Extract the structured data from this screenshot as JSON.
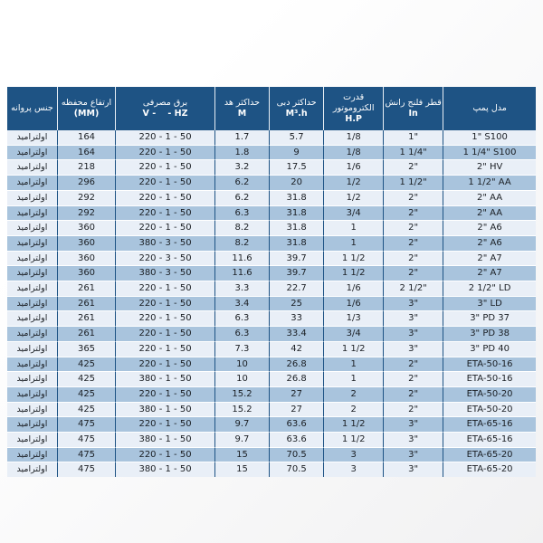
{
  "table": {
    "headers": [
      {
        "name": "impeller-material",
        "lines": [
          "جنس پروانه"
        ]
      },
      {
        "name": "housing-height",
        "lines": [
          "ارتفاع محفظه",
          "(MM)"
        ]
      },
      {
        "name": "power-supply",
        "lines": [
          "برق مصرفی",
          "V -    - HZ"
        ]
      },
      {
        "name": "max-head",
        "lines": [
          "حداکثر هد",
          "M"
        ]
      },
      {
        "name": "max-flow",
        "lines": [
          "حداکثر دبی",
          "M³.h"
        ]
      },
      {
        "name": "motor-power",
        "lines": [
          "قدرت",
          "الکتروموتور",
          "H.P"
        ]
      },
      {
        "name": "discharge-flange",
        "lines": [
          "قطر فلنج رانش",
          "In"
        ]
      },
      {
        "name": "pump-model",
        "lines": [
          "مدل پمپ"
        ]
      }
    ],
    "rows": [
      [
        "اولترامید",
        "164",
        "220 - 1 - 50",
        "1.7",
        "5.7",
        "1/8",
        "1\"",
        "1\" S100"
      ],
      [
        "اولترامید",
        "164",
        "220 - 1 - 50",
        "1.8",
        "9",
        "1/8",
        "1 1/4\"",
        "1 1/4\" S100"
      ],
      [
        "اولترامید",
        "218",
        "220 - 1 - 50",
        "3.2",
        "17.5",
        "1/6",
        "2\"",
        "2\" HV"
      ],
      [
        "اولترامید",
        "296",
        "220 - 1 - 50",
        "6.2",
        "20",
        "1/2",
        "1 1/2\"",
        "1 1/2\" AA"
      ],
      [
        "اولترامید",
        "292",
        "220 - 1 - 50",
        "6.2",
        "31.8",
        "1/2",
        "2\"",
        "2\" AA"
      ],
      [
        "اولترامید",
        "292",
        "220 - 1 - 50",
        "6.3",
        "31.8",
        "3/4",
        "2\"",
        "2\" AA"
      ],
      [
        "اولترامید",
        "360",
        "220 - 1 - 50",
        "8.2",
        "31.8",
        "1",
        "2\"",
        "2\" A6"
      ],
      [
        "اولترامید",
        "360",
        "380 - 3 - 50",
        "8.2",
        "31.8",
        "1",
        "2\"",
        "2\" A6"
      ],
      [
        "اولترامید",
        "360",
        "220 - 3 - 50",
        "11.6",
        "39.7",
        "1 1/2",
        "2\"",
        "2\" A7"
      ],
      [
        "اولترامید",
        "360",
        "380 - 3 - 50",
        "11.6",
        "39.7",
        "1 1/2",
        "2\"",
        "2\" A7"
      ],
      [
        "اولترامید",
        "261",
        "220 - 1 - 50",
        "3.3",
        "22.7",
        "1/6",
        "2 1/2\"",
        "2 1/2\" LD"
      ],
      [
        "اولترامید",
        "261",
        "220 - 1 - 50",
        "3.4",
        "25",
        "1/6",
        "3\"",
        "3\" LD"
      ],
      [
        "اولترامید",
        "261",
        "220 - 1 - 50",
        "6.3",
        "33",
        "1/3",
        "3\"",
        "3\" PD 37"
      ],
      [
        "اولترامید",
        "261",
        "220 - 1 - 50",
        "6.3",
        "33.4",
        "3/4",
        "3\"",
        "3\" PD 38"
      ],
      [
        "اولترامید",
        "365",
        "220 - 1 - 50",
        "7.3",
        "42",
        "1 1/2",
        "3\"",
        "3\" PD 40"
      ],
      [
        "اولترامید",
        "425",
        "220 - 1 - 50",
        "10",
        "26.8",
        "1",
        "2\"",
        "ETA-50-16"
      ],
      [
        "اولترامید",
        "425",
        "380 - 1 - 50",
        "10",
        "26.8",
        "1",
        "2\"",
        "ETA-50-16"
      ],
      [
        "اولترامید",
        "425",
        "220 - 1 - 50",
        "15.2",
        "27",
        "2",
        "2\"",
        "ETA-50-20"
      ],
      [
        "اولترامید",
        "425",
        "380 - 1 - 50",
        "15.2",
        "27",
        "2",
        "2\"",
        "ETA-50-20"
      ],
      [
        "اولترامید",
        "475",
        "220 - 1 - 50",
        "9.7",
        "63.6",
        "1 1/2",
        "3\"",
        "ETA-65-16"
      ],
      [
        "اولترامید",
        "475",
        "380 - 1 - 50",
        "9.7",
        "63.6",
        "1 1/2",
        "3\"",
        "ETA-65-16"
      ],
      [
        "اولترامید",
        "475",
        "220 - 1 - 50",
        "15",
        "70.5",
        "3",
        "3\"",
        "ETA-65-20"
      ],
      [
        "اولترامید",
        "475",
        "380 - 1 - 50",
        "15",
        "70.5",
        "3",
        "3\"",
        "ETA-65-20"
      ]
    ],
    "column_widths_pct": [
      9.4,
      11.0,
      18.8,
      10.3,
      10.3,
      11.3,
      11.3,
      17.6
    ]
  },
  "colors": {
    "header_bg": "#1e5384",
    "header_text": "#ffffff",
    "row_light_bg": "#e9eff7",
    "row_blue_bg": "#a9c4dd",
    "cell_border": "#1e5384",
    "row_separator": "#ffffff",
    "data_text": "#1b1f24"
  }
}
